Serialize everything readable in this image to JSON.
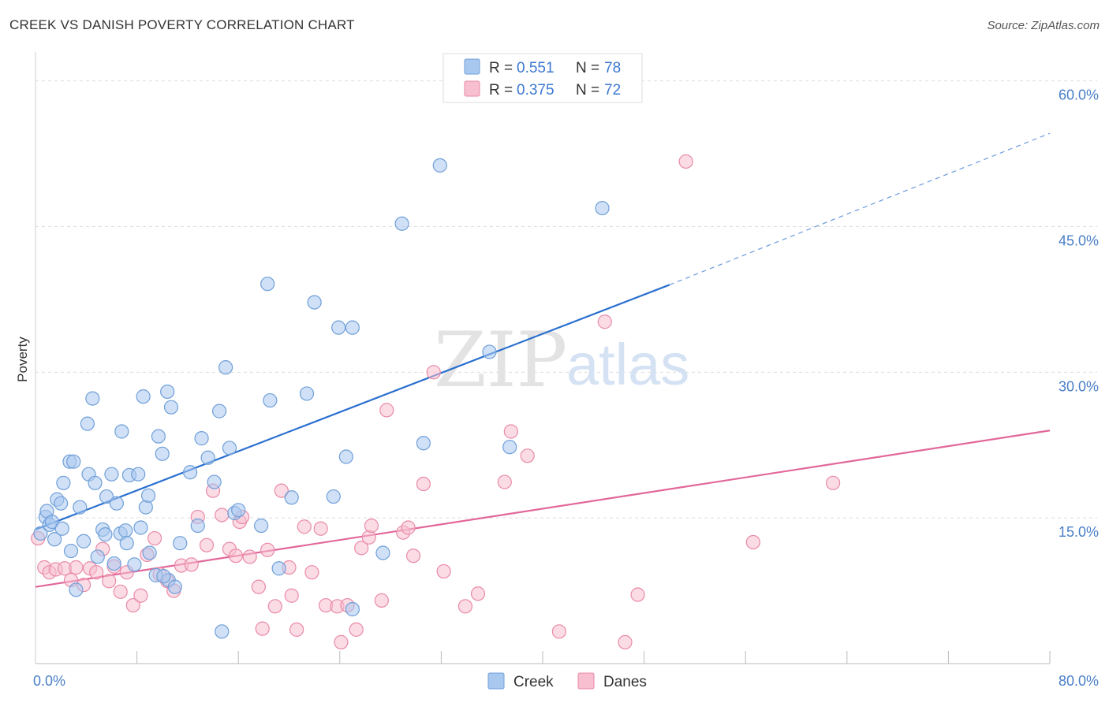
{
  "header": {
    "title": "CREEK VS DANISH POVERTY CORRELATION CHART",
    "source": "Source: ZipAtlas.com"
  },
  "watermark": {
    "zip": "ZIP",
    "atlas": "atlas"
  },
  "colors": {
    "creek_fill": "#a9c8f0",
    "creek_stroke": "#6f9fd8",
    "creek_line": "#2a6fcf",
    "danes_fill": "#f7bfd0",
    "danes_stroke": "#e98aa8",
    "danes_line": "#e2679a",
    "grid": "#dddddd",
    "tick_label": "#4a7fc9"
  },
  "legend": {
    "creek": {
      "r_label": "R =",
      "r_value": "0.551",
      "n_label": "N =",
      "n_value": "78"
    },
    "danes": {
      "r_label": "R =",
      "r_value": "0.375",
      "n_label": "N =",
      "n_value": "72"
    }
  },
  "bottom_legend": {
    "creek": "Creek",
    "danes": "Danes"
  },
  "chart_data": {
    "type": "scatter",
    "ylabel": "Poverty",
    "xlim": [
      0,
      80
    ],
    "ylim": [
      0,
      62
    ],
    "x_tick_labels": [
      {
        "value": 0,
        "label": "0.0%"
      },
      {
        "value": 80,
        "label": "80.0%"
      }
    ],
    "y_tick_labels": [
      {
        "value": 15,
        "label": "15.0%"
      },
      {
        "value": 30,
        "label": "30.0%"
      },
      {
        "value": 45,
        "label": "45.0%"
      },
      {
        "value": 60,
        "label": "60.0%"
      }
    ],
    "y_gridlines": [
      15,
      30,
      45,
      60
    ],
    "x_minor_ticks": [
      8,
      16,
      24,
      32,
      40,
      48,
      56,
      64,
      72,
      80
    ],
    "grid": true,
    "legend_position": "top-center",
    "series": [
      {
        "name": "Creek",
        "r": 0.551,
        "n": 78,
        "trend": {
          "x0": 0,
          "y0": 13.8,
          "x1": 50,
          "y1": 39.0,
          "dash_to_x": 80,
          "dash_to_y": 54.6
        },
        "points": [
          [
            0.4,
            13.4
          ],
          [
            0.8,
            15.1
          ],
          [
            0.9,
            15.7
          ],
          [
            1.1,
            14.3
          ],
          [
            1.3,
            14.6
          ],
          [
            1.5,
            12.8
          ],
          [
            1.7,
            16.9
          ],
          [
            2.0,
            16.5
          ],
          [
            2.1,
            13.9
          ],
          [
            2.2,
            18.6
          ],
          [
            2.7,
            20.8
          ],
          [
            2.8,
            11.6
          ],
          [
            3.0,
            20.8
          ],
          [
            3.2,
            7.6
          ],
          [
            3.5,
            16.1
          ],
          [
            3.8,
            12.6
          ],
          [
            4.1,
            24.7
          ],
          [
            4.2,
            19.5
          ],
          [
            4.5,
            27.3
          ],
          [
            4.7,
            18.6
          ],
          [
            4.9,
            11.0
          ],
          [
            5.3,
            13.8
          ],
          [
            5.5,
            13.3
          ],
          [
            5.6,
            17.2
          ],
          [
            6.0,
            19.5
          ],
          [
            6.2,
            10.3
          ],
          [
            6.4,
            16.5
          ],
          [
            6.7,
            13.4
          ],
          [
            6.8,
            23.9
          ],
          [
            7.1,
            13.7
          ],
          [
            7.2,
            12.4
          ],
          [
            7.4,
            19.4
          ],
          [
            7.8,
            10.2
          ],
          [
            8.1,
            19.5
          ],
          [
            8.3,
            14.0
          ],
          [
            8.5,
            27.5
          ],
          [
            8.7,
            16.1
          ],
          [
            8.9,
            17.3
          ],
          [
            9.0,
            11.4
          ],
          [
            9.5,
            9.1
          ],
          [
            9.7,
            23.4
          ],
          [
            10.0,
            21.6
          ],
          [
            10.4,
            28.0
          ],
          [
            10.7,
            26.4
          ],
          [
            10.5,
            8.6
          ],
          [
            11.0,
            7.9
          ],
          [
            11.4,
            12.4
          ],
          [
            12.2,
            19.7
          ],
          [
            12.8,
            14.2
          ],
          [
            13.1,
            23.2
          ],
          [
            13.6,
            21.2
          ],
          [
            14.1,
            18.7
          ],
          [
            14.5,
            26.0
          ],
          [
            15.0,
            30.5
          ],
          [
            15.3,
            22.2
          ],
          [
            15.7,
            15.5
          ],
          [
            16.0,
            15.8
          ],
          [
            17.8,
            14.2
          ],
          [
            18.3,
            39.1
          ],
          [
            18.5,
            27.1
          ],
          [
            19.2,
            9.8
          ],
          [
            20.2,
            17.1
          ],
          [
            21.4,
            27.8
          ],
          [
            22.0,
            37.2
          ],
          [
            23.5,
            17.2
          ],
          [
            23.9,
            34.6
          ],
          [
            24.5,
            21.3
          ],
          [
            25.0,
            34.6
          ],
          [
            25.0,
            5.6
          ],
          [
            27.4,
            11.4
          ],
          [
            28.9,
            45.3
          ],
          [
            30.6,
            22.7
          ],
          [
            31.9,
            51.3
          ],
          [
            35.8,
            32.1
          ],
          [
            37.4,
            22.3
          ],
          [
            44.7,
            46.9
          ],
          [
            14.7,
            3.3
          ],
          [
            10.1,
            9.0
          ]
        ]
      },
      {
        "name": "Danes",
        "r": 0.375,
        "n": 72,
        "trend": {
          "x0": 0,
          "y0": 7.9,
          "x1": 80,
          "y1": 24.0
        },
        "points": [
          [
            0.2,
            12.9
          ],
          [
            0.7,
            9.9
          ],
          [
            1.1,
            9.4
          ],
          [
            1.6,
            9.7
          ],
          [
            2.3,
            9.8
          ],
          [
            2.8,
            8.6
          ],
          [
            3.2,
            9.9
          ],
          [
            3.8,
            8.1
          ],
          [
            4.3,
            9.8
          ],
          [
            4.8,
            9.4
          ],
          [
            5.3,
            11.8
          ],
          [
            5.8,
            8.5
          ],
          [
            6.2,
            10.0
          ],
          [
            6.7,
            7.4
          ],
          [
            7.2,
            9.4
          ],
          [
            7.7,
            6.0
          ],
          [
            8.3,
            7.0
          ],
          [
            8.8,
            11.2
          ],
          [
            9.4,
            12.9
          ],
          [
            9.8,
            9.2
          ],
          [
            10.4,
            8.5
          ],
          [
            10.9,
            7.5
          ],
          [
            11.5,
            10.1
          ],
          [
            12.3,
            10.2
          ],
          [
            12.8,
            15.1
          ],
          [
            13.5,
            12.2
          ],
          [
            14.0,
            17.8
          ],
          [
            14.7,
            15.3
          ],
          [
            15.3,
            11.8
          ],
          [
            15.8,
            11.1
          ],
          [
            16.1,
            14.6
          ],
          [
            16.3,
            15.1
          ],
          [
            16.9,
            11.0
          ],
          [
            17.6,
            7.9
          ],
          [
            17.9,
            3.6
          ],
          [
            18.3,
            11.7
          ],
          [
            18.9,
            5.9
          ],
          [
            19.4,
            17.8
          ],
          [
            20.2,
            7.0
          ],
          [
            20.0,
            9.9
          ],
          [
            20.6,
            3.5
          ],
          [
            21.2,
            14.1
          ],
          [
            21.8,
            9.4
          ],
          [
            22.5,
            13.9
          ],
          [
            22.9,
            6.0
          ],
          [
            24.1,
            2.2
          ],
          [
            23.8,
            5.9
          ],
          [
            24.6,
            6.0
          ],
          [
            25.3,
            3.5
          ],
          [
            25.7,
            11.9
          ],
          [
            26.3,
            13.0
          ],
          [
            26.5,
            14.2
          ],
          [
            27.3,
            6.5
          ],
          [
            27.7,
            26.1
          ],
          [
            29.0,
            13.5
          ],
          [
            29.4,
            14.0
          ],
          [
            29.8,
            11.1
          ],
          [
            30.6,
            18.5
          ],
          [
            31.4,
            30.0
          ],
          [
            32.2,
            9.5
          ],
          [
            33.9,
            5.9
          ],
          [
            34.9,
            7.2
          ],
          [
            37.0,
            18.7
          ],
          [
            37.5,
            23.9
          ],
          [
            38.8,
            21.4
          ],
          [
            41.3,
            3.3
          ],
          [
            44.9,
            35.2
          ],
          [
            46.5,
            2.2
          ],
          [
            47.5,
            7.1
          ],
          [
            51.3,
            51.7
          ],
          [
            56.6,
            12.5
          ],
          [
            62.9,
            18.6
          ]
        ]
      }
    ]
  }
}
